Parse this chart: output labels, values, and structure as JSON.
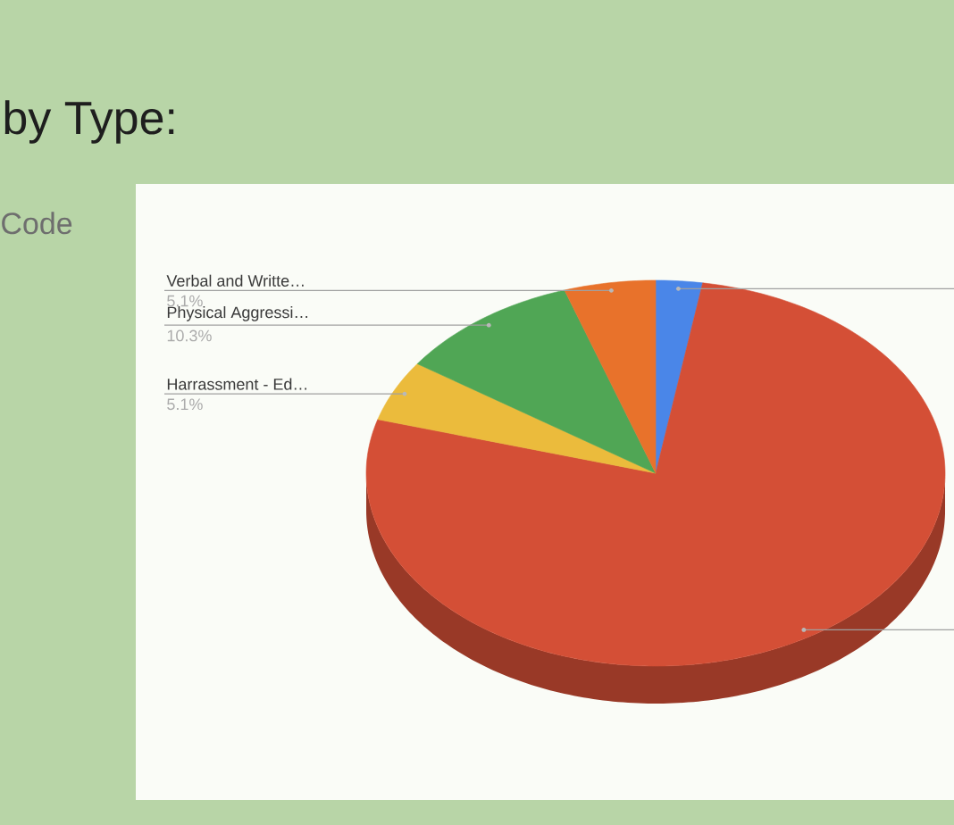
{
  "chart_data": {
    "type": "pie",
    "title": "by Type:",
    "annotations": [
      "Code"
    ],
    "categories": [
      null,
      null,
      "Harrassment - Ed…",
      "Physical Aggressi…",
      "Verbal and Writte…"
    ],
    "values": [
      2.6,
      76.9,
      5.1,
      10.3,
      5.1
    ],
    "colors": [
      "#4a86e8",
      "#d44f36",
      "#ebbb3c",
      "#50a655",
      "#e8722b"
    ],
    "value_labels": [
      null,
      null,
      "5.1%",
      "10.3%",
      "5.1%"
    ]
  }
}
